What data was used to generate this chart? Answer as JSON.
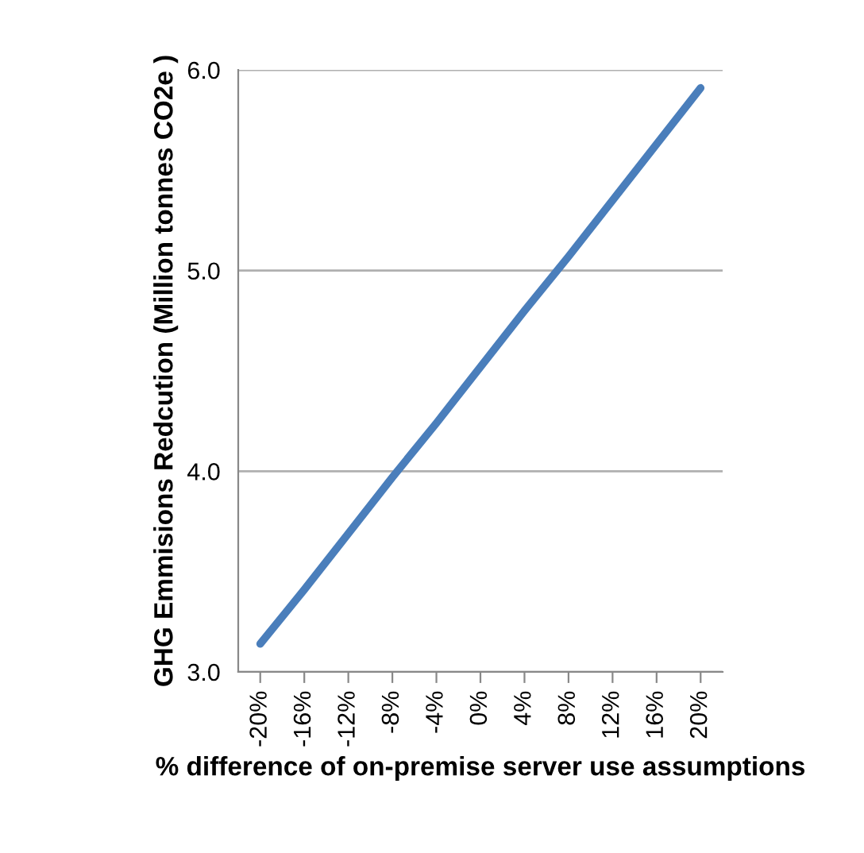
{
  "chart_data": {
    "type": "line",
    "xlabel": "% difference of on-premise server use assumptions",
    "ylabel": "GHG Emmisions Redcution (Million tonnes CO2e )",
    "categories": [
      "-20%",
      "-16%",
      "-12%",
      "-8%",
      "-4%",
      "0%",
      "4%",
      "8%",
      "12%",
      "16%",
      "20%"
    ],
    "series": [
      {
        "color": "#4a7ebb",
        "values": [
          3.14,
          3.41,
          3.69,
          3.97,
          4.24,
          4.52,
          4.8,
          5.07,
          5.35,
          5.63,
          5.91
        ]
      }
    ],
    "ylim": [
      3.0,
      6.0
    ],
    "yticks": [
      {
        "value": 3.0,
        "label": "3.0"
      },
      {
        "value": 4.0,
        "label": "4.0"
      },
      {
        "value": 5.0,
        "label": "5.0"
      },
      {
        "value": 6.0,
        "label": "6.0"
      }
    ],
    "grid": "y",
    "marker": "none",
    "line_style": "solid"
  }
}
